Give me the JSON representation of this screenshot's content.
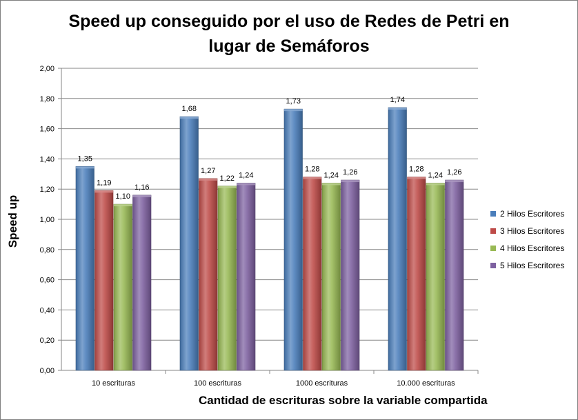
{
  "chart_data": {
    "type": "bar",
    "title_lines": [
      "Speed up conseguido por el uso de Redes de Petri en",
      "lugar de Semáforos"
    ],
    "xlabel": "Cantidad de  escrituras sobre la variable compartida",
    "ylabel": "Speed up",
    "categories": [
      "10 escrituras",
      "100 escrituras",
      "1000 escrituras",
      "10.000 escrituras"
    ],
    "ylim": [
      0,
      2
    ],
    "yticks": [
      "0,00",
      "0,20",
      "0,40",
      "0,60",
      "0,80",
      "1,00",
      "1,20",
      "1,40",
      "1,60",
      "1,80",
      "2,00"
    ],
    "grid": true,
    "legend_position": "right",
    "series": [
      {
        "name": "2 Hilos Escritores",
        "color": "#4a7ebb",
        "values": [
          1.35,
          1.68,
          1.73,
          1.74
        ],
        "labels": [
          "1,35",
          "1,68",
          "1,73",
          "1,74"
        ]
      },
      {
        "name": "3 Hilos Escritores",
        "color": "#be4b48",
        "values": [
          1.19,
          1.27,
          1.28,
          1.28
        ],
        "labels": [
          "1,19",
          "1,27",
          "1,28",
          "1,28"
        ]
      },
      {
        "name": "4 Hilos Escritores",
        "color": "#98b954",
        "values": [
          1.1,
          1.22,
          1.24,
          1.24
        ],
        "labels": [
          "1,10",
          "1,22",
          "1,24",
          "1,24"
        ]
      },
      {
        "name": "5 Hilos Escritores",
        "color": "#7d60a0",
        "values": [
          1.16,
          1.24,
          1.26,
          1.26
        ],
        "labels": [
          "1,16",
          "1,24",
          "1,26",
          "1,26"
        ]
      }
    ]
  }
}
